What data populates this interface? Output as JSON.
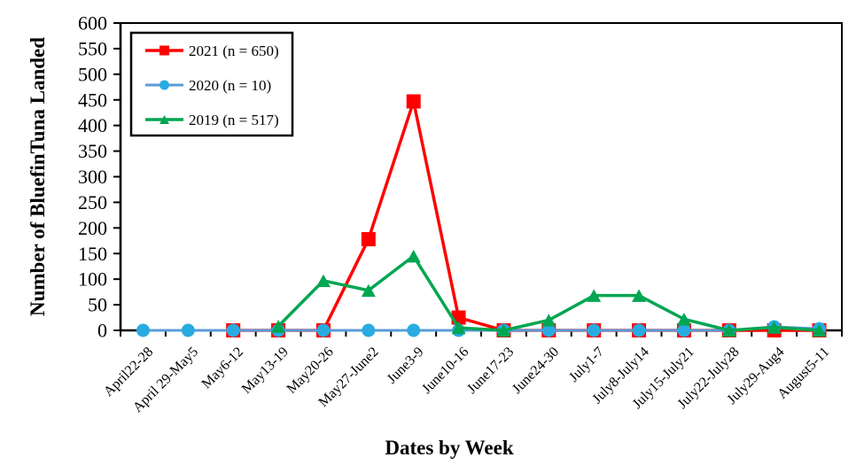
{
  "chart_data": {
    "type": "line",
    "title": "",
    "xlabel": "Dates by Week",
    "ylabel": "Number of BluefinTuna Landed",
    "ylim": [
      0,
      600
    ],
    "ytick_step": 50,
    "grid": false,
    "legend_position": "top-left",
    "axis_color": "#000000",
    "text_color": "#000000",
    "background_color": "#ffffff",
    "categories": [
      "April22-28",
      "April 29-May5",
      "May6-12",
      "May13-19",
      "May20-26",
      "May27-June2",
      "June3-9",
      "June10-16",
      "June17-23",
      "June24-30",
      "July1-7",
      "July8-July14",
      "July15-July21",
      "July22-July28",
      "July29-Aug4",
      "August5-11"
    ],
    "series": [
      {
        "name": "2021 (n = 650)",
        "year": "2021",
        "n": 650,
        "color": "#FF0000",
        "marker": "square",
        "marker_color": "#FF0000",
        "values": [
          null,
          null,
          0,
          0,
          0,
          178,
          447,
          25,
          0,
          0,
          0,
          0,
          0,
          0,
          0,
          0
        ]
      },
      {
        "name": "2020 (n = 10)",
        "year": "2020",
        "n": 10,
        "color": "#5B9BD5",
        "marker": "circle",
        "marker_color": "#29ABE2",
        "values": [
          0,
          0,
          0,
          0,
          0,
          0,
          0,
          0,
          0,
          0,
          0,
          0,
          0,
          0,
          7,
          3
        ]
      },
      {
        "name": "2019 (n = 517)",
        "year": "2019",
        "n": 517,
        "color": "#00A651",
        "marker": "triangle",
        "marker_color": "#00A651",
        "values": [
          null,
          null,
          null,
          8,
          97,
          78,
          145,
          5,
          0,
          20,
          68,
          68,
          22,
          0,
          6,
          0
        ]
      }
    ]
  }
}
